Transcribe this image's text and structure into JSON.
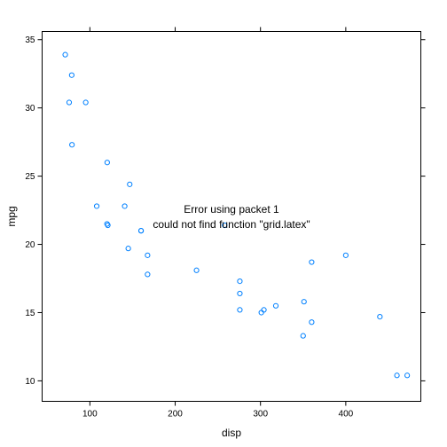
{
  "chart_data": {
    "type": "scatter",
    "title": "",
    "xlabel": "disp",
    "ylabel": "mpg",
    "xlim": [
      44.0,
      488.0
    ],
    "ylim": [
      8.5,
      35.6
    ],
    "x_ticks": [
      100,
      200,
      300,
      400
    ],
    "y_ticks": [
      10,
      15,
      20,
      25,
      30,
      35
    ],
    "grid": false,
    "point_color": "#0080FF",
    "error_lines": [
      "Error using packet 1",
      "could not find function \"grid.latex\""
    ],
    "points": [
      {
        "x": 160,
        "y": 21.0
      },
      {
        "x": 160,
        "y": 21.0
      },
      {
        "x": 108,
        "y": 22.8
      },
      {
        "x": 258,
        "y": 21.4
      },
      {
        "x": 360,
        "y": 18.7
      },
      {
        "x": 225,
        "y": 18.1
      },
      {
        "x": 360,
        "y": 14.3
      },
      {
        "x": 146.7,
        "y": 24.4
      },
      {
        "x": 140.8,
        "y": 22.8
      },
      {
        "x": 167.6,
        "y": 19.2
      },
      {
        "x": 167.6,
        "y": 17.8
      },
      {
        "x": 275.8,
        "y": 16.4
      },
      {
        "x": 275.8,
        "y": 17.3
      },
      {
        "x": 275.8,
        "y": 15.2
      },
      {
        "x": 472,
        "y": 10.4
      },
      {
        "x": 460,
        "y": 10.4
      },
      {
        "x": 440,
        "y": 14.7
      },
      {
        "x": 78.7,
        "y": 32.4
      },
      {
        "x": 75.7,
        "y": 30.4
      },
      {
        "x": 71.1,
        "y": 33.9
      },
      {
        "x": 120.1,
        "y": 21.5
      },
      {
        "x": 318,
        "y": 15.5
      },
      {
        "x": 304,
        "y": 15.2
      },
      {
        "x": 350,
        "y": 13.3
      },
      {
        "x": 400,
        "y": 19.2
      },
      {
        "x": 79,
        "y": 27.3
      },
      {
        "x": 120.3,
        "y": 26.0
      },
      {
        "x": 95.1,
        "y": 30.4
      },
      {
        "x": 351,
        "y": 15.8
      },
      {
        "x": 145,
        "y": 19.7
      },
      {
        "x": 301,
        "y": 15.0
      },
      {
        "x": 121,
        "y": 21.4
      }
    ]
  }
}
